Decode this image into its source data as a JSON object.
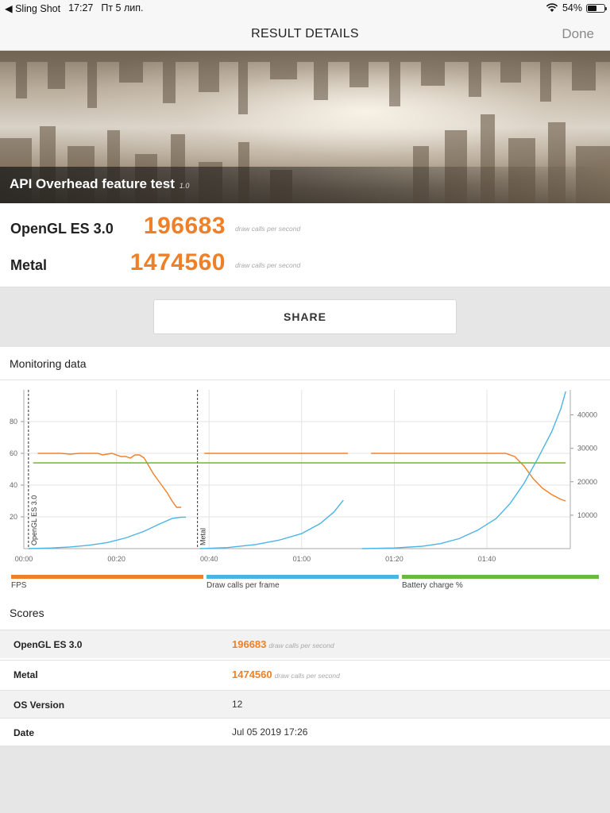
{
  "status_bar": {
    "back_app": "◀ Sling Shot",
    "time": "17:27",
    "date": "Пт 5 лип.",
    "battery": "54%",
    "battery_level": 0.54
  },
  "nav": {
    "title": "RESULT DETAILS",
    "done": "Done"
  },
  "test": {
    "name": "API Overhead feature test",
    "version": "1.0"
  },
  "results": [
    {
      "label": "OpenGL ES 3.0",
      "value": "196683",
      "unit": "draw calls per second"
    },
    {
      "label": "Metal",
      "value": "1474560",
      "unit": "draw calls per second"
    }
  ],
  "share_label": "SHARE",
  "monitoring": {
    "heading": "Monitoring data"
  },
  "chart_data": {
    "type": "line",
    "x_ticks": [
      "00:00",
      "00:20",
      "00:40",
      "01:00",
      "01:20",
      "01:40"
    ],
    "x_tick_seconds": [
      0,
      20,
      40,
      60,
      80,
      100
    ],
    "xlim": [
      0,
      118
    ],
    "y_left_ticks": [
      20,
      40,
      60,
      80
    ],
    "y_left_lim": [
      0,
      100
    ],
    "y_right_ticks": [
      10000,
      20000,
      30000,
      40000
    ],
    "y_right_lim": [
      0,
      47500
    ],
    "markers": [
      {
        "label": "OpenGL ES 3.0",
        "x": 1
      },
      {
        "label": "Metal",
        "x": 37.5
      }
    ],
    "series": [
      {
        "name": "FPS",
        "color": "#f08028",
        "axis": "left",
        "segments": [
          [
            [
              3,
              60
            ],
            [
              6,
              60
            ],
            [
              8,
              60
            ],
            [
              10,
              59.5
            ],
            [
              12,
              60
            ],
            [
              14,
              60
            ],
            [
              16,
              60
            ],
            [
              17,
              59
            ],
            [
              19,
              60
            ],
            [
              21,
              58
            ],
            [
              22,
              58
            ],
            [
              23,
              57
            ],
            [
              24,
              59
            ],
            [
              25,
              59
            ],
            [
              26,
              57
            ],
            [
              27,
              52
            ],
            [
              28,
              47
            ],
            [
              29,
              43
            ],
            [
              30,
              39
            ],
            [
              31,
              35
            ],
            [
              32,
              30
            ],
            [
              33,
              26
            ],
            [
              34,
              26
            ]
          ],
          [
            [
              39,
              60
            ],
            [
              50,
              60
            ],
            [
              60,
              60
            ],
            [
              70,
              60
            ]
          ],
          [
            [
              75,
              60
            ],
            [
              85,
              60
            ],
            [
              95,
              60
            ],
            [
              104,
              60
            ],
            [
              106,
              58
            ],
            [
              108,
              52
            ],
            [
              110,
              44
            ],
            [
              112,
              38
            ],
            [
              114,
              34
            ],
            [
              116,
              31
            ],
            [
              117,
              30
            ]
          ]
        ]
      },
      {
        "name": "Draw calls per frame",
        "color": "#4ab5e5",
        "axis": "right",
        "segments": [
          [
            [
              1,
              0
            ],
            [
              6,
              200
            ],
            [
              10,
              500
            ],
            [
              14,
              1000
            ],
            [
              18,
              1800
            ],
            [
              22,
              3200
            ],
            [
              26,
              5200
            ],
            [
              29,
              7200
            ],
            [
              32,
              9000
            ],
            [
              34,
              9400
            ],
            [
              35,
              9400
            ]
          ],
          [
            [
              38,
              0
            ],
            [
              44,
              300
            ],
            [
              50,
              1200
            ],
            [
              55,
              2500
            ],
            [
              60,
              4500
            ],
            [
              64,
              7500
            ],
            [
              67,
              11000
            ],
            [
              69,
              14500
            ]
          ],
          [
            [
              73,
              0
            ],
            [
              80,
              200
            ],
            [
              86,
              700
            ],
            [
              90,
              1500
            ],
            [
              94,
              3000
            ],
            [
              98,
              5500
            ],
            [
              102,
              9000
            ],
            [
              105,
              13500
            ],
            [
              108,
              19500
            ],
            [
              111,
              27000
            ],
            [
              114,
              35000
            ],
            [
              116,
              42000
            ],
            [
              117,
              47000
            ]
          ]
        ]
      },
      {
        "name": "Battery charge %",
        "color": "#6ab93f",
        "axis": "left",
        "segments": [
          [
            [
              2,
              54
            ],
            [
              117,
              54
            ]
          ]
        ]
      }
    ]
  },
  "legend": [
    {
      "label": "FPS",
      "color": "#f08028"
    },
    {
      "label": "Draw calls per frame",
      "color": "#4ab5e5"
    },
    {
      "label": "Battery charge %",
      "color": "#6ab93f"
    }
  ],
  "scores": {
    "heading": "Scores",
    "rows": [
      {
        "key": "OpenGL ES 3.0",
        "value": "196683",
        "unit": "draw calls per second"
      },
      {
        "key": "Metal",
        "value": "1474560",
        "unit": "draw calls per second"
      },
      {
        "key": "OS Version",
        "value": "12"
      },
      {
        "key": "Date",
        "value": "Jul 05 2019 17:26"
      }
    ]
  }
}
